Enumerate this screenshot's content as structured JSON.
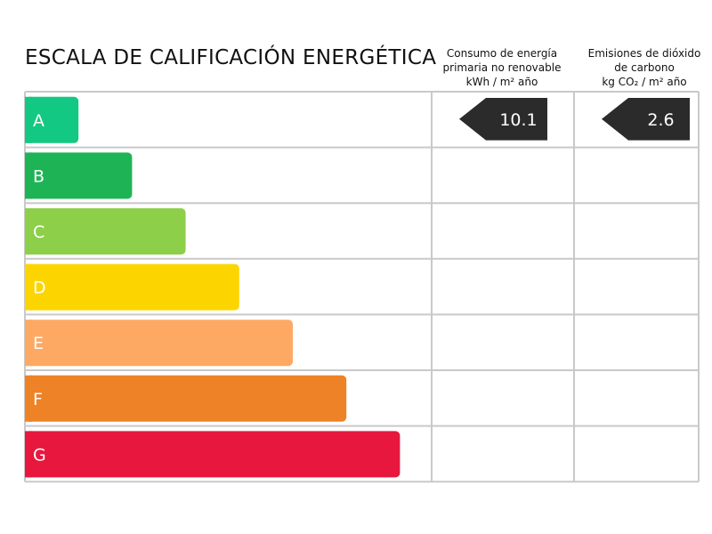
{
  "title": "ESCALA DE CALIFICACIÓN ENERGÉTICA",
  "columns": [
    {
      "lines": [
        "Consumo de energía",
        "primaria no renovable",
        "kWh / m² año"
      ],
      "rating": "A",
      "value": "10.1"
    },
    {
      "lines": [
        "Emisiones de dióxido",
        "de carbono",
        "kg CO₂ / m² año"
      ],
      "rating": "A",
      "value": "2.6"
    }
  ],
  "chart_data": {
    "type": "bar",
    "categories": [
      "A",
      "B",
      "C",
      "D",
      "E",
      "F",
      "G"
    ],
    "values": [
      1,
      2,
      3,
      4,
      5,
      6,
      7
    ],
    "colors": [
      "#13c882",
      "#1eb455",
      "#8ecf4a",
      "#fcd500",
      "#fda964",
      "#ee8226",
      "#e8173d"
    ],
    "indicator_color": "#2b2b2b",
    "grid": true
  }
}
